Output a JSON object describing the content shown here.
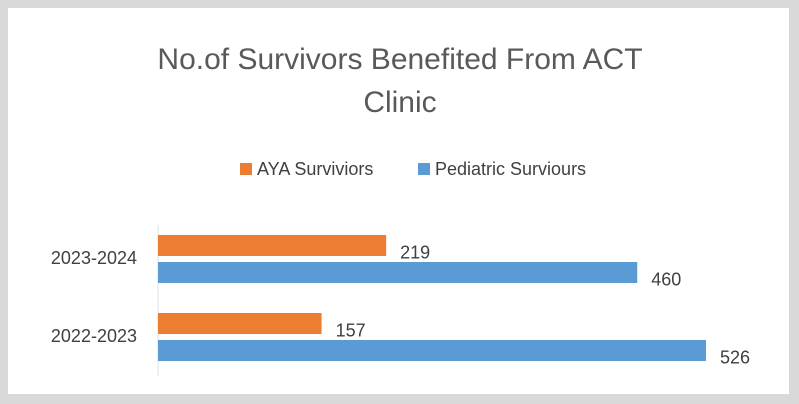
{
  "chart_data": {
    "type": "hbar",
    "title": "No.of Survivors Benefited From ACT Clinic",
    "categories": [
      "2022-2023",
      "2023-2024"
    ],
    "series": [
      {
        "name": "AYA Surviviors",
        "color": "#ed7d31",
        "values": [
          157,
          219
        ]
      },
      {
        "name": "Pediatric Surviours",
        "color": "#5b9bd5",
        "values": [
          526,
          460
        ]
      }
    ],
    "legend": "top"
  }
}
